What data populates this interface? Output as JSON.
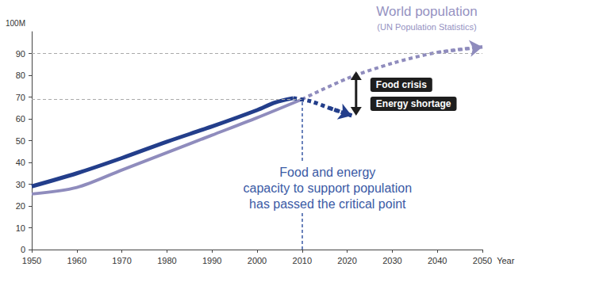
{
  "chart_data": {
    "type": "line",
    "ylabel": "100M",
    "xlabel": "Year",
    "xlim": [
      1950,
      2050
    ],
    "xticks": [
      1950,
      1960,
      1970,
      1980,
      1990,
      2000,
      2010,
      2020,
      2030,
      2040,
      2050
    ],
    "ylim": [
      0,
      100
    ],
    "yticks": [
      0,
      10,
      20,
      30,
      40,
      50,
      60,
      70,
      80,
      90
    ],
    "grid": false,
    "reference_y": [
      90
    ],
    "critical_point": {
      "x": 2010,
      "y": 69
    },
    "annotations": {
      "population_label": "World population",
      "population_source": "(UN Population Statistics)",
      "food": "Food crisis",
      "energy": "Energy shortage",
      "critical_note": [
        "Food and energy",
        "capacity to support population",
        "has passed the critical point"
      ]
    },
    "series": [
      {
        "color": "#8f8cbd",
        "line_style": "solid",
        "x": [
          1950,
          1960,
          1970,
          1980,
          1990,
          2000,
          2010
        ],
        "values": [
          25.5,
          28.5,
          36.5,
          44.5,
          52.5,
          60.5,
          69
        ]
      },
      {
        "color": "#8f8cbd",
        "line_style": "dashed",
        "marker": "arrow",
        "x": [
          2010,
          2020,
          2030,
          2040,
          2050
        ],
        "values": [
          69,
          78.5,
          85.5,
          90.5,
          93
        ]
      },
      {
        "color": "#233e8b",
        "line_style": "solid",
        "x": [
          1950,
          1960,
          1970,
          1980,
          1990,
          2000,
          2004,
          2008
        ],
        "values": [
          29,
          35,
          42,
          49.5,
          56.5,
          64,
          67.5,
          69.5
        ]
      },
      {
        "color": "#233e8b",
        "line_style": "dashed",
        "marker": "arrow",
        "x": [
          2008,
          2012,
          2016,
          2021
        ],
        "values": [
          69.5,
          68,
          65,
          61.5
        ]
      }
    ]
  }
}
